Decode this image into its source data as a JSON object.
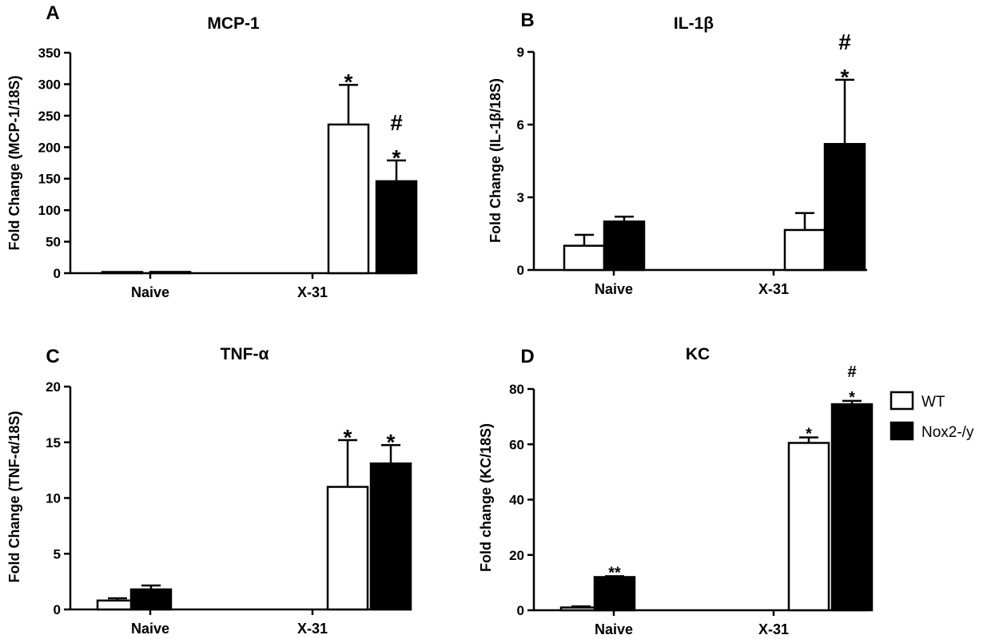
{
  "figure": {
    "legend": {
      "position": "right",
      "entries": [
        {
          "label": "WT",
          "fill": "#ffffff"
        },
        {
          "label": "Nox2-/y",
          "fill": "#000000"
        }
      ]
    }
  },
  "chart_data": [
    {
      "type": "bar",
      "letter": "A",
      "title": "MCP-1",
      "ylabel": "Fold Change (MCP-1/18S)",
      "xlabel": "",
      "categories": [
        "Naive",
        "X-31"
      ],
      "ylim": [
        0,
        350
      ],
      "yticks": [
        0,
        50,
        100,
        150,
        200,
        250,
        300,
        350
      ],
      "grid": false,
      "series": [
        {
          "name": "WT",
          "fill": "#ffffff",
          "values": [
            1,
            236
          ],
          "errors": [
            0,
            63
          ]
        },
        {
          "name": "Nox2-/y",
          "fill": "#000000",
          "values": [
            2,
            146
          ],
          "errors": [
            0,
            33
          ]
        }
      ],
      "annotations": [
        {
          "series": 0,
          "category": 1,
          "lines": [
            "*"
          ],
          "size": "big"
        },
        {
          "series": 1,
          "category": 1,
          "lines": [
            "#",
            "*"
          ],
          "size": "big"
        }
      ]
    },
    {
      "type": "bar",
      "letter": "B",
      "title": "IL-1β",
      "ylabel": "Fold Change (IL-1β/18S)",
      "xlabel": "",
      "categories": [
        "Naive",
        "X-31"
      ],
      "ylim": [
        0,
        9
      ],
      "yticks": [
        0,
        3,
        6,
        9
      ],
      "grid": false,
      "series": [
        {
          "name": "WT",
          "fill": "#ffffff",
          "values": [
            1.0,
            1.65
          ],
          "errors": [
            0.45,
            0.7
          ]
        },
        {
          "name": "Nox2-/y",
          "fill": "#000000",
          "values": [
            2.0,
            5.2
          ],
          "errors": [
            0.2,
            2.65
          ]
        }
      ],
      "annotations": [
        {
          "series": 1,
          "category": 1,
          "lines": [
            "#",
            "*"
          ],
          "size": "big"
        }
      ]
    },
    {
      "type": "bar",
      "letter": "C",
      "title": "TNF-α",
      "ylabel": "Fold Change (TNF-α/18S)",
      "xlabel": "",
      "categories": [
        "Naive",
        "X-31"
      ],
      "ylim": [
        0,
        20
      ],
      "yticks": [
        0,
        5,
        10,
        15,
        20
      ],
      "grid": false,
      "series": [
        {
          "name": "WT",
          "fill": "#ffffff",
          "values": [
            0.8,
            11.0
          ],
          "errors": [
            0.2,
            4.2
          ]
        },
        {
          "name": "Nox2-/y",
          "fill": "#000000",
          "values": [
            1.8,
            13.1
          ],
          "errors": [
            0.35,
            1.65
          ]
        }
      ],
      "annotations": [
        {
          "series": 0,
          "category": 1,
          "lines": [
            "*"
          ],
          "size": "big"
        },
        {
          "series": 1,
          "category": 1,
          "lines": [
            "*"
          ],
          "size": "big"
        }
      ]
    },
    {
      "type": "bar",
      "letter": "D",
      "title": "KC",
      "ylabel": "Fold change  (KC/18S)",
      "xlabel": "",
      "categories": [
        "Naive",
        "X-31"
      ],
      "ylim": [
        0,
        80
      ],
      "yticks": [
        0,
        20,
        40,
        60,
        80
      ],
      "grid": false,
      "series": [
        {
          "name": "WT",
          "fill": "#ffffff",
          "values": [
            1.0,
            60.5
          ],
          "errors": [
            0.4,
            2.0
          ]
        },
        {
          "name": "Nox2-/y",
          "fill": "#000000",
          "values": [
            12.0,
            74.5
          ],
          "errors": [
            0.3,
            1.2
          ]
        }
      ],
      "annotations": [
        {
          "series": 1,
          "category": 0,
          "lines": [
            "**"
          ],
          "size": "small"
        },
        {
          "series": 0,
          "category": 1,
          "lines": [
            "*"
          ],
          "size": "small"
        },
        {
          "series": 1,
          "category": 1,
          "lines": [
            "#",
            "*"
          ],
          "size": "small"
        }
      ]
    }
  ]
}
